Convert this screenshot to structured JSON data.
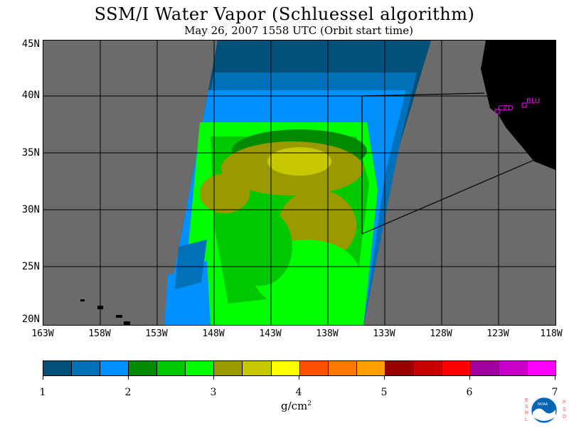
{
  "title": "SSM/I Water Vapor (Schluessel algorithm)",
  "subtitle": "May 26, 2007  1558 UTC  (Orbit start time)",
  "map": {
    "lat_labels": [
      "45N",
      "40N",
      "35N",
      "30N",
      "25N",
      "20N"
    ],
    "lon_labels": [
      "163W",
      "158W",
      "153W",
      "148W",
      "143W",
      "138W",
      "133W",
      "128W",
      "123W",
      "118W"
    ],
    "stations": [
      {
        "code": "CZD",
        "marker_color": "#ff00ff"
      },
      {
        "code": "BLU",
        "marker_color": "#ff00ff"
      }
    ],
    "background_color": "#6b6b6b",
    "land_color": "#000000"
  },
  "colorbar": {
    "colors": [
      "#00507a",
      "#0070b8",
      "#0090ff",
      "#008a00",
      "#00c800",
      "#00ff00",
      "#9a9a00",
      "#c8c800",
      "#ffff00",
      "#ff5000",
      "#ff7800",
      "#ffa000",
      "#9a0000",
      "#c80000",
      "#ff0000",
      "#a000a0",
      "#c800c8",
      "#ff00ff"
    ],
    "ticks": [
      "1",
      "2",
      "3",
      "4",
      "5",
      "6",
      "7"
    ],
    "units": "g/cm",
    "units_exp": "2"
  },
  "logo": {
    "left_text": "ESRL",
    "right_text": "PSD",
    "center_text": "NOAA"
  }
}
